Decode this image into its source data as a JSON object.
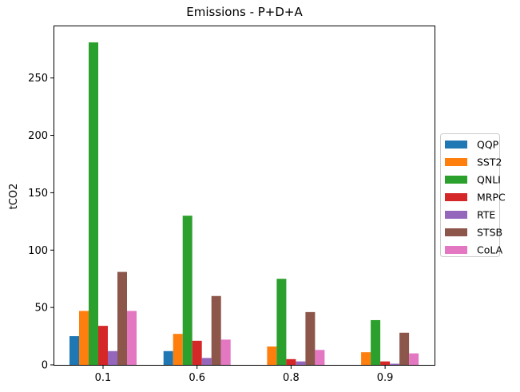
{
  "chart_data": {
    "type": "bar",
    "title": "Emissions - P+D+A",
    "xlabel": "",
    "ylabel": "tCO2",
    "categories": [
      "0.1",
      "0.6",
      "0.8",
      "0.9"
    ],
    "ylim": [
      0,
      295
    ],
    "yticks": [
      0,
      50,
      100,
      150,
      200,
      250
    ],
    "grid": false,
    "legend_position": "center-right outside",
    "series": [
      {
        "name": "QQP",
        "color": "#1f77b4",
        "values": [
          25,
          12,
          0,
          0
        ]
      },
      {
        "name": "SST2",
        "color": "#ff7f0e",
        "values": [
          47,
          27,
          16,
          11
        ]
      },
      {
        "name": "QNLI",
        "color": "#2ca02c",
        "values": [
          281,
          130,
          75,
          39
        ]
      },
      {
        "name": "MRPC",
        "color": "#d62728",
        "values": [
          34,
          21,
          5,
          3
        ]
      },
      {
        "name": "RTE",
        "color": "#9467bd",
        "values": [
          12,
          6,
          3,
          1
        ]
      },
      {
        "name": "STSB",
        "color": "#8c564b",
        "values": [
          81,
          60,
          46,
          28
        ]
      },
      {
        "name": "CoLA",
        "color": "#e377c2",
        "values": [
          47,
          22,
          13,
          10
        ]
      }
    ]
  }
}
